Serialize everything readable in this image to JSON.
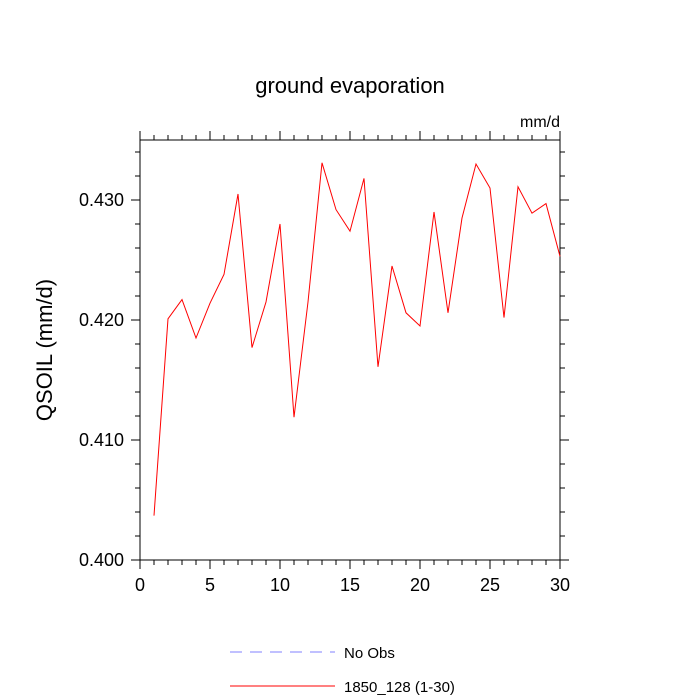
{
  "chart_data": {
    "type": "line",
    "title": "ground evaporation",
    "units_label": "mm/d",
    "ylabel": "QSOIL  (mm/d)",
    "xlabel": "",
    "xlim": [
      0,
      30
    ],
    "ylim": [
      0.4,
      0.435
    ],
    "x_ticks": [
      0,
      5,
      10,
      15,
      20,
      25,
      30
    ],
    "x_tick_labels": [
      "0",
      "5",
      "10",
      "15",
      "20",
      "25",
      "30"
    ],
    "y_ticks": [
      0.4,
      0.41,
      0.42,
      0.43
    ],
    "y_tick_labels": [
      "0.400",
      "0.410",
      "0.420",
      "0.430"
    ],
    "grid": false,
    "legend_position": "bottom-center",
    "series": [
      {
        "name": "1850_128 (1-30)",
        "color": "#ff0000",
        "dash": "solid",
        "x": [
          1,
          2,
          3,
          4,
          5,
          6,
          7,
          8,
          9,
          10,
          11,
          12,
          13,
          14,
          15,
          16,
          17,
          18,
          19,
          20,
          21,
          22,
          23,
          24,
          25,
          26,
          27,
          28,
          29,
          30
        ],
        "values": [
          0.4037,
          0.4201,
          0.4217,
          0.4185,
          0.4214,
          0.4238,
          0.4305,
          0.4177,
          0.4215,
          0.428,
          0.4119,
          0.4215,
          0.4331,
          0.4292,
          0.4274,
          0.4318,
          0.4161,
          0.4245,
          0.4206,
          0.4195,
          0.429,
          0.4206,
          0.4285,
          0.433,
          0.431,
          0.4202,
          0.4311,
          0.4289,
          0.4297,
          0.4253
        ]
      }
    ],
    "legend": [
      {
        "label": "No Obs",
        "color": "#8080ff",
        "dash": "dashed"
      },
      {
        "label": "1850_128 (1-30)",
        "color": "#ff0000",
        "dash": "solid"
      }
    ]
  }
}
